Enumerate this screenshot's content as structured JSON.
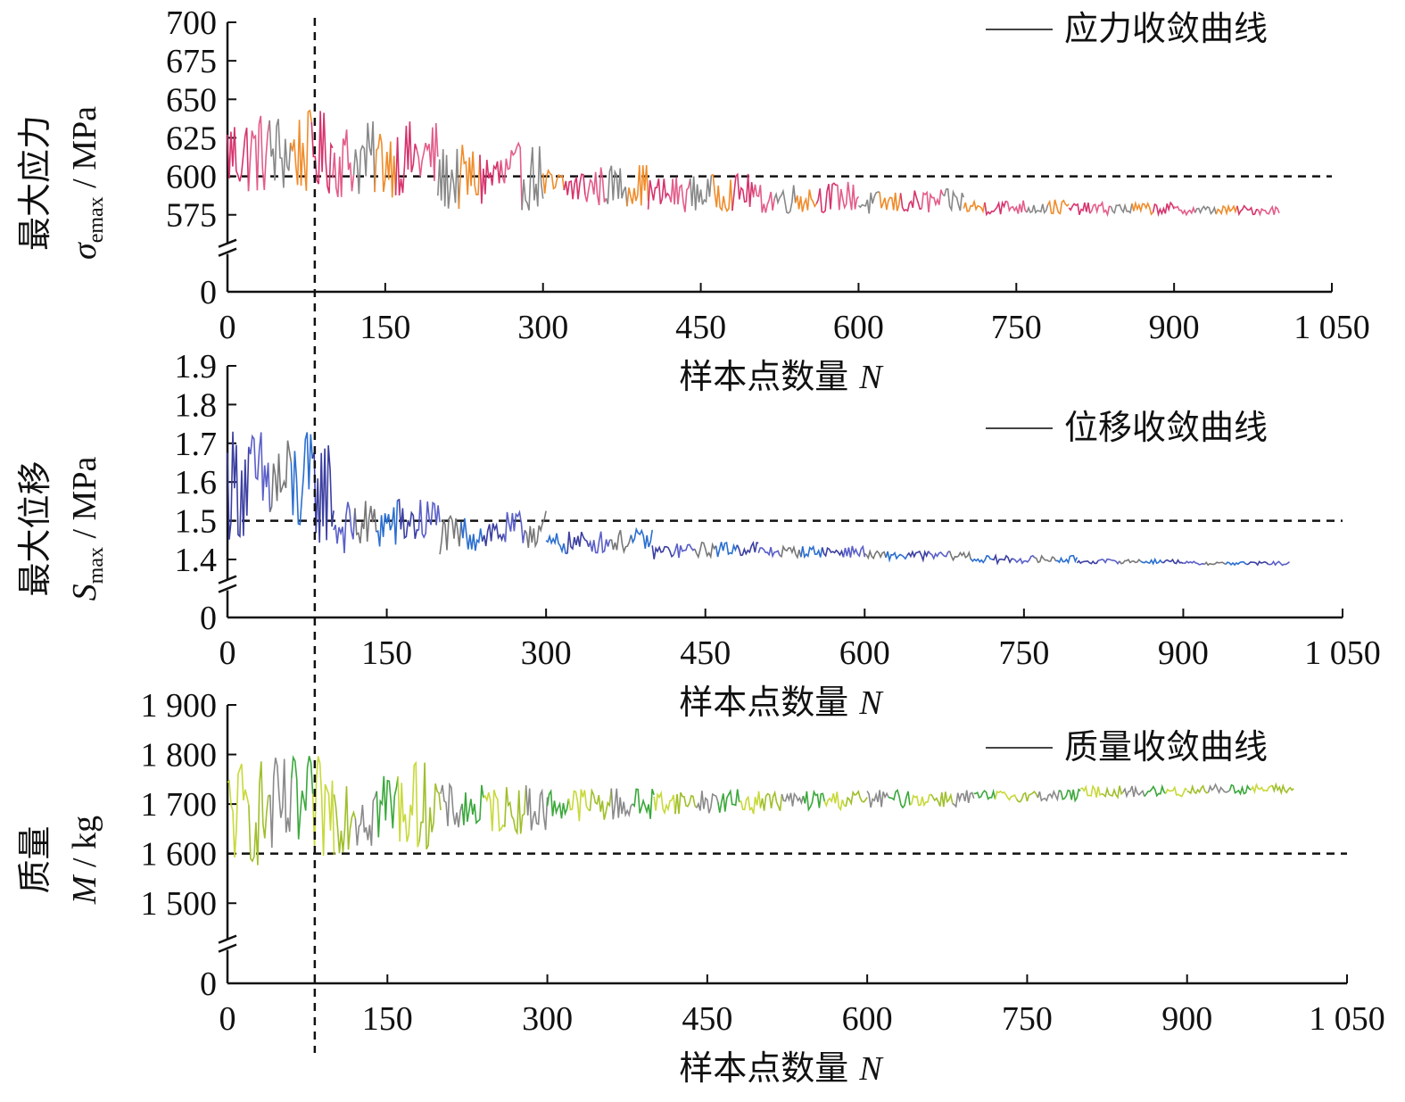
{
  "chart_data": [
    {
      "type": "line",
      "ylabel": {
        "cn": "最大应力",
        "sym": "σ",
        "sub": "emax",
        "unit": " / MPa"
      },
      "xlabel": {
        "cn": "样本点数量 ",
        "sym": "N"
      },
      "x_ticks": [
        "0",
        "150",
        "300",
        "450",
        "600",
        "750",
        "900",
        "1 050"
      ],
      "xlim": [
        0,
        1050
      ],
      "y_ticks": [
        575,
        600,
        625,
        650,
        675,
        700
      ],
      "y_tick_labels": [
        "575",
        "600",
        "625",
        "650",
        "675",
        "700"
      ],
      "y_zero_label": "0",
      "ylim_broken": [
        565,
        700
      ],
      "reference_line": 600,
      "vertical_reference_x": 83,
      "series": [
        {
          "name": "应力收敛曲线",
          "segments": [
            {
              "x": [
                0,
                100
              ],
              "level": 615,
              "amplitude": 28,
              "end": 615
            },
            {
              "x": [
                100,
                200
              ],
              "level": 610,
              "amplitude": 25,
              "end": 612
            },
            {
              "x": [
                200,
                300
              ],
              "level": 598,
              "amplitude": 22,
              "end": 600
            },
            {
              "x": [
                300,
                400
              ],
              "level": 592,
              "amplitude": 14,
              "end": 595
            },
            {
              "x": [
                400,
                500
              ],
              "level": 588,
              "amplitude": 12,
              "end": 590
            },
            {
              "x": [
                500,
                600
              ],
              "level": 585,
              "amplitude": 10,
              "end": 587
            },
            {
              "x": [
                600,
                700
              ],
              "level": 582,
              "amplitude": 8,
              "end": 584
            },
            {
              "x": [
                700,
                800
              ],
              "level": 580,
              "amplitude": 5,
              "end": 580
            },
            {
              "x": [
                800,
                900
              ],
              "level": 579,
              "amplitude": 4,
              "end": 579
            },
            {
              "x": [
                900,
                1000
              ],
              "level": 578,
              "amplitude": 3,
              "end": 578
            }
          ],
          "colors": [
            "#d6336c",
            "#e35d8a",
            "#888888",
            "#f08c2a"
          ]
        }
      ]
    },
    {
      "type": "line",
      "ylabel": {
        "cn": "最大位移",
        "sym": "S",
        "sub": "max",
        "unit": " / MPa"
      },
      "xlabel": {
        "cn": "样本点数量 ",
        "sym": "N"
      },
      "x_ticks": [
        "0",
        "150",
        "300",
        "450",
        "600",
        "750",
        "900",
        "1 050"
      ],
      "xlim": [
        0,
        1050
      ],
      "y_ticks": [
        1.4,
        1.5,
        1.6,
        1.7,
        1.8,
        1.9
      ],
      "y_tick_labels": [
        "1.4",
        "1.5",
        "1.6",
        "1.7",
        "1.8",
        "1.9"
      ],
      "y_zero_label": "0",
      "ylim_broken": [
        1.37,
        1.9
      ],
      "reference_line": 1.5,
      "vertical_reference_x": 83,
      "series": [
        {
          "name": "位移收敛曲线",
          "segments": [
            {
              "x": [
                0,
                100
              ],
              "level": 1.6,
              "amplitude": 0.15,
              "end": 1.58
            },
            {
              "x": [
                100,
                200
              ],
              "level": 1.48,
              "amplitude": 0.07,
              "end": 1.5
            },
            {
              "x": [
                200,
                300
              ],
              "level": 1.46,
              "amplitude": 0.05,
              "end": 1.48
            },
            {
              "x": [
                300,
                400
              ],
              "level": 1.44,
              "amplitude": 0.03,
              "end": 1.45
            },
            {
              "x": [
                400,
                500
              ],
              "level": 1.42,
              "amplitude": 0.02,
              "end": 1.43
            },
            {
              "x": [
                500,
                600
              ],
              "level": 1.42,
              "amplitude": 0.015,
              "end": 1.42
            },
            {
              "x": [
                600,
                700
              ],
              "level": 1.41,
              "amplitude": 0.012,
              "end": 1.41
            },
            {
              "x": [
                700,
                800
              ],
              "level": 1.4,
              "amplitude": 0.01,
              "end": 1.4
            },
            {
              "x": [
                800,
                900
              ],
              "level": 1.395,
              "amplitude": 0.006,
              "end": 1.395
            },
            {
              "x": [
                900,
                1000
              ],
              "level": 1.39,
              "amplitude": 0.005,
              "end": 1.39
            }
          ],
          "colors": [
            "#3b3fa0",
            "#5a5fc8",
            "#777777",
            "#2a6fd0"
          ]
        }
      ]
    },
    {
      "type": "line",
      "ylabel": {
        "cn": "质量",
        "sym": "M",
        "sub": "",
        "unit": " / kg"
      },
      "xlabel": {
        "cn": "样本点数量 ",
        "sym": "N"
      },
      "x_ticks": [
        "0",
        "150",
        "300",
        "450",
        "600",
        "750",
        "900",
        "1 050"
      ],
      "xlim": [
        0,
        1050
      ],
      "y_ticks": [
        1500,
        1600,
        1700,
        1800,
        1900
      ],
      "y_tick_labels": [
        "1 500",
        "1 600",
        "1 700",
        "1 800",
        "1 900"
      ],
      "y_zero_label": "0",
      "ylim_broken": [
        1450,
        1900
      ],
      "reference_line": 1600,
      "vertical_reference_x": 83,
      "series": [
        {
          "name": "质量收敛曲线",
          "segments": [
            {
              "x": [
                0,
                100
              ],
              "level": 1680,
              "amplitude": 110,
              "end": 1690
            },
            {
              "x": [
                100,
                200
              ],
              "level": 1690,
              "amplitude": 90,
              "end": 1700
            },
            {
              "x": [
                200,
                300
              ],
              "level": 1690,
              "amplitude": 50,
              "end": 1690
            },
            {
              "x": [
                300,
                400
              ],
              "level": 1700,
              "amplitude": 35,
              "end": 1700
            },
            {
              "x": [
                400,
                500
              ],
              "level": 1705,
              "amplitude": 25,
              "end": 1705
            },
            {
              "x": [
                500,
                600
              ],
              "level": 1705,
              "amplitude": 20,
              "end": 1710
            },
            {
              "x": [
                600,
                700
              ],
              "level": 1710,
              "amplitude": 18,
              "end": 1712
            },
            {
              "x": [
                700,
                800
              ],
              "level": 1715,
              "amplitude": 12,
              "end": 1718
            },
            {
              "x": [
                800,
                900
              ],
              "level": 1725,
              "amplitude": 12,
              "end": 1725
            },
            {
              "x": [
                900,
                1000
              ],
              "level": 1730,
              "amplitude": 10,
              "end": 1730
            }
          ],
          "colors": [
            "#c8d93a",
            "#9fbf2a",
            "#8a8a8a",
            "#3aa83a"
          ]
        }
      ]
    }
  ]
}
